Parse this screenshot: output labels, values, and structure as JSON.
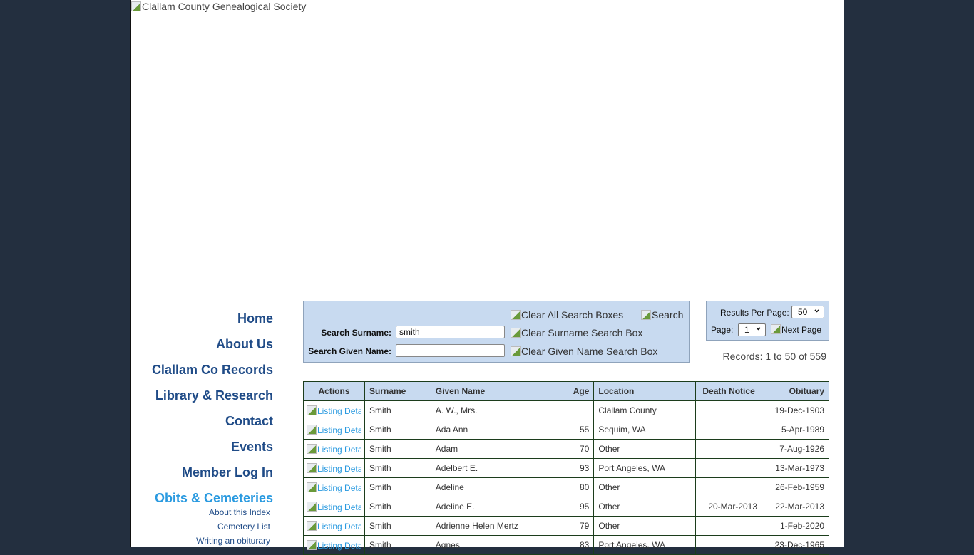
{
  "header": {
    "logo_alt": "Clallam County Genealogical Society"
  },
  "nav": {
    "items": [
      "Home",
      "About Us",
      "Clallam Co Records",
      "Library & Research",
      "Contact",
      "Events",
      "Member Log In"
    ],
    "active": "Obits & Cemeteries",
    "sub_items": [
      "About this Index",
      "Cemetery List",
      "Writing an obiturary"
    ]
  },
  "search": {
    "clear_all": "Clear All Search Boxes",
    "search": "Search",
    "surname_label": "Search Surname:",
    "surname_value": "smith",
    "given_label": "Search Given Name:",
    "given_value": "",
    "clear_surname": "Clear Surname Search Box",
    "clear_given": "Clear Given Name Search Box"
  },
  "pager": {
    "results_label": "Results Per Page:",
    "results_value": "50",
    "page_label": "Page:",
    "page_value": "1",
    "next": "Next Page",
    "records": "Records: 1 to 50 of 559"
  },
  "table": {
    "headers": [
      "Actions",
      "Surname",
      "Given Name",
      "Age",
      "Location",
      "Death Notice",
      "Obituary"
    ],
    "action_label": "Listing Details",
    "rows": [
      [
        "Smith",
        "A. W., Mrs.",
        "",
        "Clallam County",
        "",
        "19-Dec-1903"
      ],
      [
        "Smith",
        "Ada Ann",
        "55",
        "Sequim, WA",
        "",
        "5-Apr-1989"
      ],
      [
        "Smith",
        "Adam",
        "70",
        "Other",
        "",
        "7-Aug-1926"
      ],
      [
        "Smith",
        "Adelbert E.",
        "93",
        "Port Angeles, WA",
        "",
        "13-Mar-1973"
      ],
      [
        "Smith",
        "Adeline",
        "80",
        "Other",
        "",
        "26-Feb-1959"
      ],
      [
        "Smith",
        "Adeline E.",
        "95",
        "Other",
        "20-Mar-2013",
        "22-Mar-2013"
      ],
      [
        "Smith",
        "Adrienne Helen Mertz",
        "79",
        "Other",
        "",
        "1-Feb-2020"
      ],
      [
        "Smith",
        "Agnes",
        "83",
        "Port Angeles, WA",
        "",
        "23-Dec-1965"
      ]
    ]
  }
}
